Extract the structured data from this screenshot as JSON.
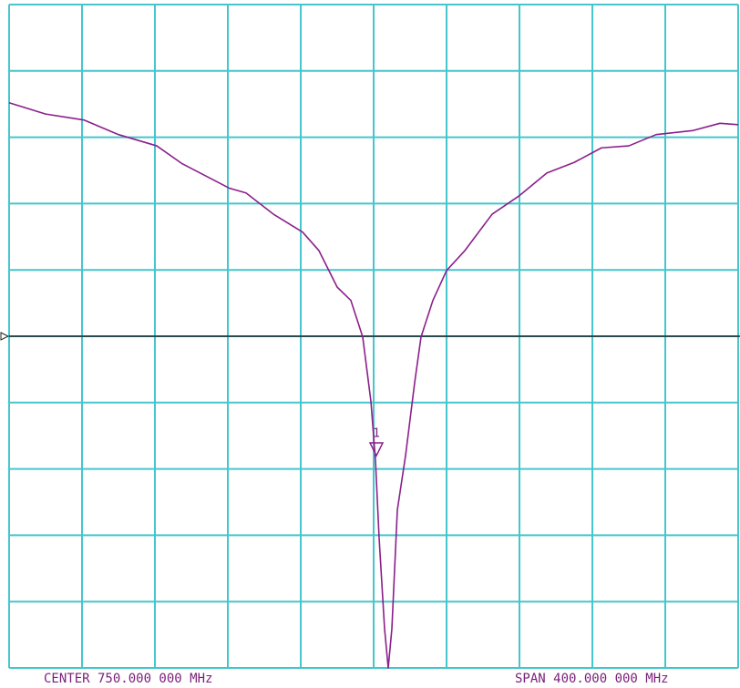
{
  "chart_data": {
    "type": "line",
    "center_label": "CENTER 750.000 000 MHz",
    "span_label": "SPAN 400.000 000 MHz",
    "xlim": [
      550,
      950
    ],
    "xticks": [
      550,
      590,
      630,
      670,
      710,
      750,
      790,
      830,
      870,
      910,
      950
    ],
    "ylim": [
      0,
      10
    ],
    "yticks": [
      0,
      1,
      2,
      3,
      4,
      5,
      6,
      7,
      8,
      9,
      10
    ],
    "grid": true,
    "grid_color": "#45c6cc",
    "reference_level": 5,
    "reference_color": "#202020",
    "series": [
      {
        "color": "#8b1f8b",
        "x": [
          550,
          570,
          591,
          610,
          631,
          645,
          671,
          680,
          695,
          711,
          720,
          730,
          737.5,
          744,
          748.5,
          751,
          753,
          756,
          758,
          760,
          763,
          767.5,
          772.5,
          776,
          782.5,
          790,
          800,
          815,
          830,
          845,
          860,
          875,
          890,
          905,
          925,
          940,
          950
        ],
        "values": [
          8.52,
          8.35,
          8.26,
          8.04,
          7.87,
          7.6,
          7.23,
          7.16,
          6.84,
          6.57,
          6.29,
          5.74,
          5.54,
          4.99,
          4.02,
          3.13,
          1.96,
          0.59,
          0,
          0.59,
          2.38,
          3.2,
          4.3,
          4.99,
          5.54,
          5.99,
          6.29,
          6.84,
          7.12,
          7.46,
          7.62,
          7.84,
          7.87,
          8.04,
          8.1,
          8.21,
          8.19
        ]
      }
    ],
    "marker": {
      "label": "1",
      "x": 751.5,
      "y": 3.2
    }
  }
}
